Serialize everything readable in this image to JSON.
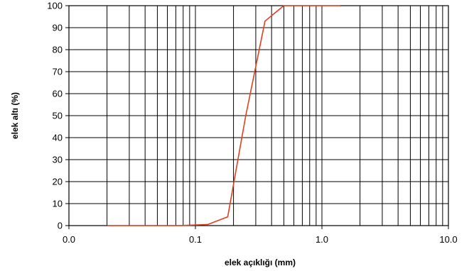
{
  "chart_data": {
    "type": "line",
    "xlabel": "elek açıklığı (mm)",
    "ylabel": "elek altı (%)",
    "x_scale": "log",
    "xlim": [
      0.01,
      10
    ],
    "ylim": [
      0,
      100
    ],
    "grid": true,
    "x_tick_labels": [
      "0.0",
      "0.1",
      "1.0",
      "10.0"
    ],
    "x_tick_values": [
      0.01,
      0.1,
      1,
      10
    ],
    "y_ticks": [
      0,
      10,
      20,
      30,
      40,
      50,
      60,
      70,
      80,
      90,
      100
    ],
    "series": [
      {
        "color": "#e0401c",
        "x": [
          0.02,
          0.075,
          0.125,
          0.18,
          0.25,
          0.355,
          0.5,
          0.71,
          1.0,
          1.4
        ],
        "y": [
          0,
          0,
          0.5,
          4,
          50,
          93,
          100,
          100,
          100,
          100
        ]
      }
    ]
  }
}
